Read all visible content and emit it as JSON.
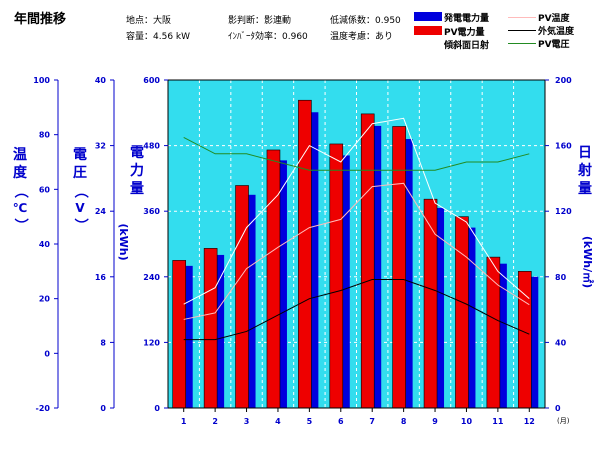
{
  "title": "年間推移",
  "info": {
    "site": "地点：大阪",
    "capacity": "容量：4.56 kW",
    "shadow": "影判断：影連動",
    "inverter": "ｲﾝﾊﾞｰﾀ効率：0.960",
    "loss_coef": "低減係数：0.950",
    "temp_consider": "温度考慮：あり"
  },
  "legend": {
    "generated": "発電電力量",
    "pv_energy": "PV電力量",
    "irradiation": "傾斜面日射",
    "pv_temp": "PV温度",
    "outside_temp": "外気温度",
    "pv_voltage": "PV電圧"
  },
  "axis_titles": {
    "temp": [
      "温",
      "度",
      "（",
      "℃",
      "）"
    ],
    "voltage": [
      "電",
      "圧",
      "（",
      "V",
      "）"
    ],
    "power": [
      "電",
      "力",
      "量"
    ],
    "power_unit": "(kWh)",
    "irr": [
      "日",
      "射",
      "量"
    ],
    "irr_unit": "(kWh/㎡)"
  },
  "month_unit": "(月)",
  "chart_data": {
    "type": "bar",
    "categories": [
      "1",
      "2",
      "3",
      "4",
      "5",
      "6",
      "7",
      "8",
      "9",
      "10",
      "11",
      "12"
    ],
    "axes": {
      "temp": {
        "min": -20,
        "max": 100,
        "ticks": [
          -20,
          0,
          20,
          40,
          60,
          80,
          100
        ]
      },
      "voltage": {
        "min": 0,
        "max": 40,
        "ticks": [
          0,
          8,
          16,
          24,
          32,
          40
        ]
      },
      "power": {
        "min": 0,
        "max": 600,
        "ticks": [
          0,
          120,
          240,
          360,
          480,
          600
        ]
      },
      "irr": {
        "min": 0,
        "max": 200,
        "ticks": [
          0,
          40,
          80,
          120,
          160,
          200
        ]
      }
    },
    "grid": true,
    "series": [
      {
        "name": "発電電力量",
        "type": "bar",
        "axis": "power",
        "color": "#0000dd",
        "values": [
          260,
          280,
          390,
          453,
          541,
          462,
          516,
          492,
          366,
          330,
          264,
          240
        ]
      },
      {
        "name": "PV電力量",
        "type": "bar",
        "axis": "power",
        "color": "#ee0000",
        "values": [
          270,
          292,
          407,
          472,
          563,
          483,
          538,
          515,
          382,
          350,
          276,
          250
        ]
      },
      {
        "name": "PV温度",
        "type": "line",
        "axis": "temp",
        "color": "#ffffff",
        "values": [
          18,
          24,
          46,
          58,
          76,
          70,
          84,
          86,
          55,
          48,
          30,
          20
        ]
      },
      {
        "name": "外気温度",
        "type": "line",
        "axis": "temp",
        "color": "#000000",
        "values": [
          5,
          5,
          8,
          14,
          20,
          23,
          27,
          27,
          23,
          18,
          12,
          7
        ]
      },
      {
        "name": "PV電圧",
        "type": "line",
        "axis": "voltage",
        "color": "#228b22",
        "values": [
          33,
          31,
          31,
          30,
          29,
          29,
          29,
          29,
          29,
          30,
          30,
          31
        ]
      },
      {
        "name": "傾斜面日射",
        "type": "line",
        "axis": "irr",
        "color": "#ffbbbb",
        "values": [
          54,
          58,
          85,
          98,
          110,
          115,
          135,
          137,
          106,
          92,
          75,
          63
        ]
      }
    ]
  }
}
